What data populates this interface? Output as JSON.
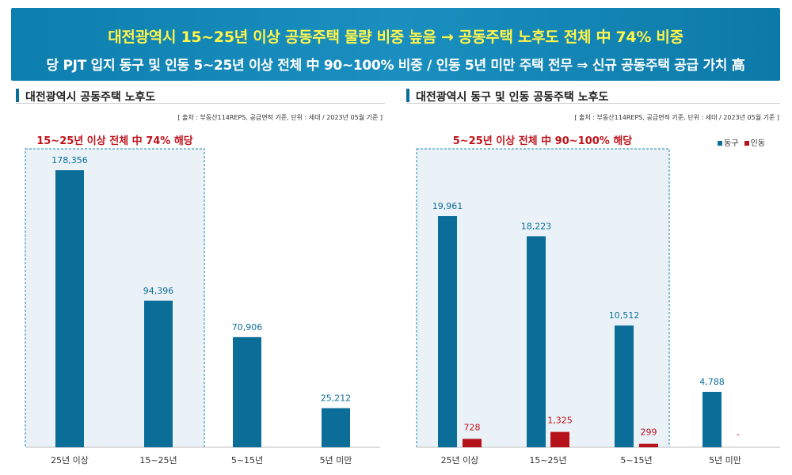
{
  "header": {
    "title": "대전광역시 15~25년 이상 공동주택 물량 비중 높음 → 공동주택 노후도 전체 中 74% 비중",
    "subtitle": "당 PJT 입지 동구 및 인동 5~25년 이상 전체 中 90~100% 비중 / 인동 5년 미만 주택 전무 ⇒ 신규 공동주택 공급 가치 高"
  },
  "colors": {
    "donggu": "#0b6e99",
    "indong": "#b5121b",
    "highlight_fill": "#eaf2f7",
    "highlight_border": "#1b86b6"
  },
  "chart_data": [
    {
      "type": "bar",
      "title": "대전광역시 공동주택 노후도",
      "source": "[ 출처 : 부동산114REPS, 공급면적 기준, 단위 : 세대 / 2023년 05월 기준 ]",
      "annotation": "15~25년 이상 전체 中 74% 해당",
      "categories": [
        "25년 이상",
        "15~25년",
        "5~15년",
        "5년 미만"
      ],
      "values": [
        178356,
        94396,
        70906,
        25212
      ],
      "value_labels": [
        "178,356",
        "94,396",
        "70,906",
        "25,212"
      ],
      "ylim": [
        0,
        200000
      ]
    },
    {
      "type": "bar",
      "title": "대전광역시 동구 및 인동 공동주택 노후도",
      "source": "[ 출처 : 부동산114REPS, 공급면적 기준,  단위 : 세대 / 2023년 05월 기준 ]",
      "annotation": "5~25년 이상 전체 中 90~100% 해당",
      "legend_position": "top-right",
      "categories": [
        "25년 이상",
        "15~25년",
        "5~15년",
        "5년 미만"
      ],
      "series": [
        {
          "name": "동구",
          "values": [
            19961,
            18223,
            10512,
            4788
          ],
          "value_labels": [
            "19,961",
            "18,223",
            "10,512",
            "4,788"
          ]
        },
        {
          "name": "인동",
          "values": [
            728,
            1325,
            299,
            0
          ],
          "value_labels": [
            "728",
            "1,325",
            "299",
            "-"
          ]
        }
      ],
      "ylim": [
        0,
        22000
      ]
    }
  ]
}
